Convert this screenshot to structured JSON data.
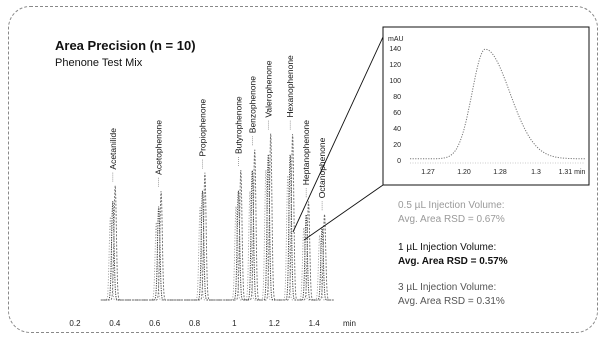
{
  "chart_data": [
    {
      "type": "line",
      "title": "Area Precision (n = 10)",
      "subtitle": "Phenone Test Mix",
      "xlabel": "min",
      "x_ticks": [
        "0.2",
        "0.4",
        "0.6",
        "0.8",
        "1",
        "1.2",
        "1.4"
      ],
      "xlim": [
        0.15,
        1.58
      ],
      "peak_labels": [
        "Acetanilide",
        "Acetophenone",
        "Propiophenone",
        "Butyrophenone",
        "Benzophenone",
        "Valerophenone",
        "Hexanophenone",
        "Heptanophenone",
        "Octanophenone"
      ],
      "peak_times": [
        0.39,
        0.62,
        0.84,
        1.02,
        1.09,
        1.17,
        1.28,
        1.36,
        1.44
      ],
      "runs": [
        {
          "name": "0.5 µL Injection Volume",
          "peak_heights_pct": [
            32,
            30,
            36,
            36,
            42,
            50,
            48,
            28,
            25
          ]
        },
        {
          "name": "1 µL Injection Volume",
          "peak_heights_pct": [
            38,
            36,
            42,
            42,
            50,
            56,
            56,
            33,
            28
          ]
        },
        {
          "name": "3 µL Injection Volume",
          "peak_heights_pct": [
            44,
            42,
            49,
            50,
            58,
            64,
            64,
            38,
            33
          ]
        }
      ]
    },
    {
      "type": "line",
      "ylabel": "mAU",
      "x_ticks": [
        "1.27",
        "1.20",
        "1.28",
        "1.3",
        "1.31 min"
      ],
      "y_ticks": [
        0,
        20,
        40,
        60,
        80,
        100,
        120,
        140
      ],
      "ylim": [
        0,
        150
      ],
      "peak": {
        "apex_x": 0.43,
        "apex_y": 137
      }
    }
  ],
  "annotations": [
    {
      "line1": "0.5 µL Injection Volume:",
      "line2": "Avg. Area RSD = 0.67%",
      "color": "#9a9a9a",
      "bold": false
    },
    {
      "line1": "1 µL Injection Volume:",
      "line2": "Avg. Area RSD = 0.57%",
      "color": "#111111",
      "bold": true
    },
    {
      "line1": "3 µL Injection Volume:",
      "line2": "Avg. Area RSD = 0.31%",
      "color": "#555555",
      "bold": false
    }
  ]
}
